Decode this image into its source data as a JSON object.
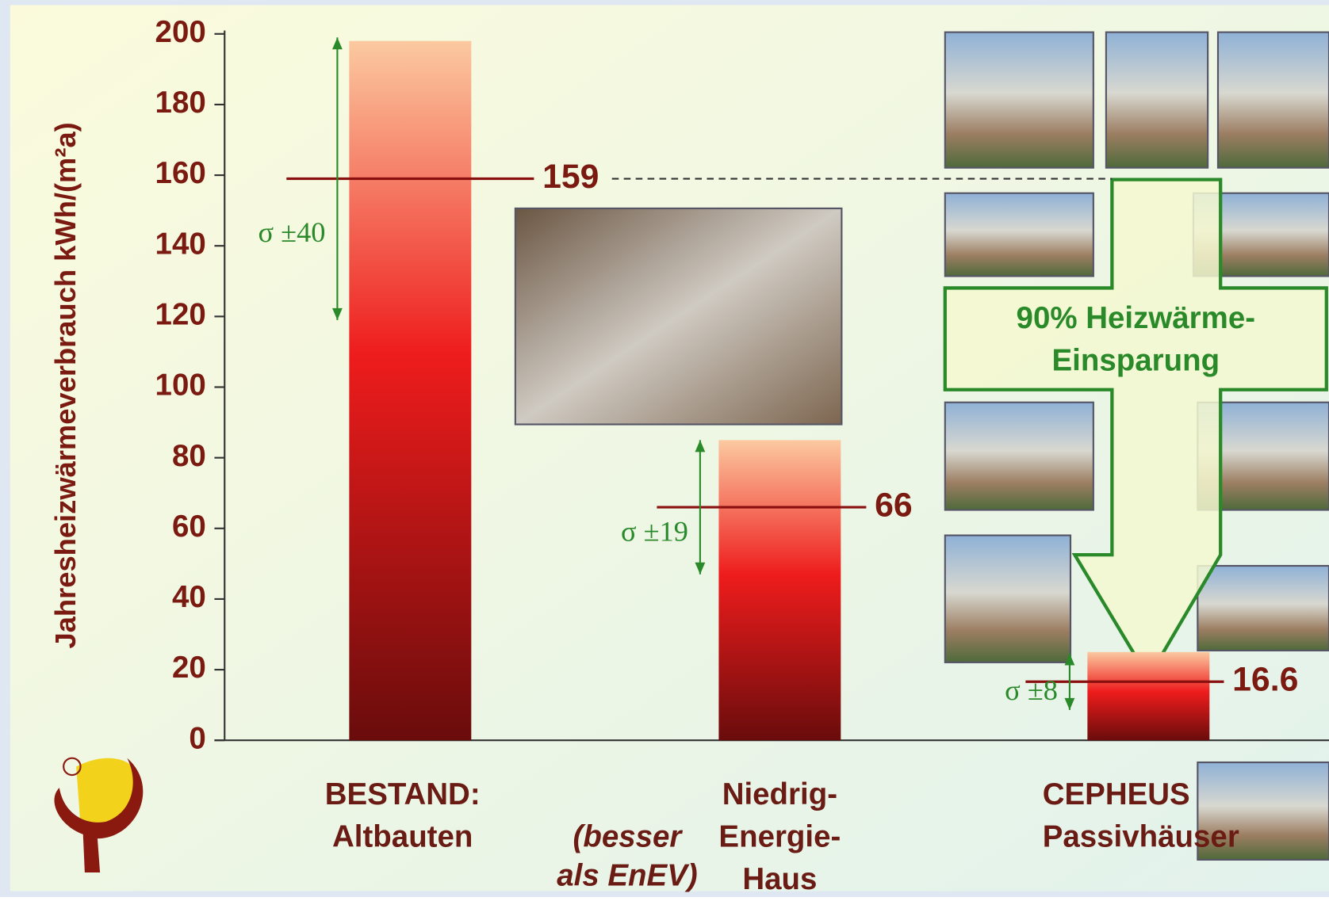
{
  "chart_data": {
    "type": "bar",
    "y_label": "Jahresheizwärmeverbrauch kWh/(m²a)",
    "categories": [
      [
        "BESTAND:",
        "Altbauten"
      ],
      [
        "Niedrig-",
        "Energie-",
        "Haus"
      ],
      [
        "CEPHEUS",
        "Passivhäuser"
      ]
    ],
    "values": [
      198,
      85,
      25
    ],
    "means": [
      159,
      66,
      16.6
    ],
    "errors": [
      40,
      19,
      8
    ],
    "error_labels": [
      "σ ±40",
      "σ ±19",
      "σ ±8"
    ],
    "color": "#ee1c1c",
    "ylim": [
      0,
      200
    ],
    "yticks": [
      0,
      20,
      40,
      60,
      80,
      100,
      120,
      140,
      160,
      180,
      200
    ],
    "note": [
      "(besser",
      "als EnEV)"
    ],
    "arrow_text": [
      "90% Heizwärme-",
      "Einsparung"
    ]
  }
}
